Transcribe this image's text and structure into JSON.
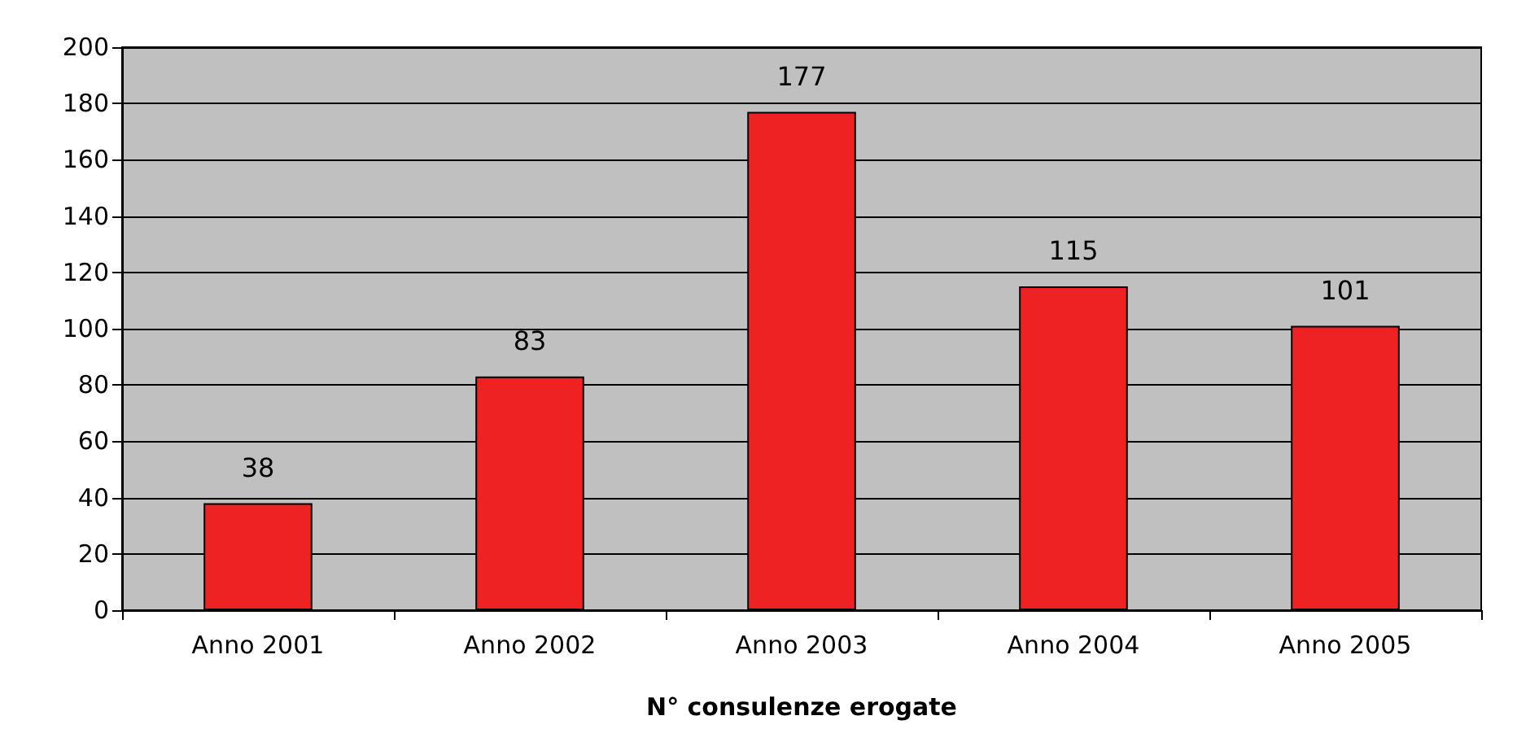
{
  "chart_data": {
    "type": "bar",
    "xlabel": "N° consulenze erogate",
    "categories": [
      "Anno 2001",
      "Anno 2002",
      "Anno 2003",
      "Anno 2004",
      "Anno 2005"
    ],
    "values": [
      38,
      83,
      177,
      115,
      101
    ],
    "color": "#ee2222",
    "data_labels": true,
    "ylim": [
      0,
      200
    ],
    "yticks": [
      0,
      20,
      40,
      60,
      80,
      100,
      120,
      140,
      160,
      180,
      200
    ],
    "grid": "y"
  }
}
